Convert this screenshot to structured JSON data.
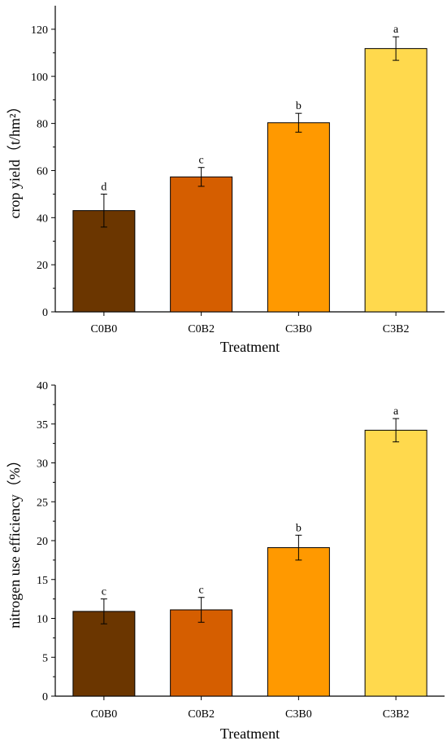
{
  "chart_data": [
    {
      "type": "bar",
      "title": "",
      "xlabel": "Treatment",
      "ylabel": "crop yield（t/hm²）",
      "ylim": [
        0,
        130
      ],
      "yticks": [
        0,
        20,
        40,
        60,
        80,
        100,
        120
      ],
      "categories": [
        "C0B0",
        "C0B2",
        "C3B0",
        "C3B2"
      ],
      "values": [
        43,
        57.3,
        80.3,
        111.8
      ],
      "errors": [
        7,
        4,
        4,
        5
      ],
      "significance": [
        "d",
        "c",
        "b",
        "a"
      ],
      "colors": [
        "#6b3600",
        "#d55e00",
        "#ff9900",
        "#ffd94d"
      ],
      "grid": false
    },
    {
      "type": "bar",
      "title": "",
      "xlabel": "Treatment",
      "ylabel": "nitrogen use efficiency（%）",
      "ylim": [
        0,
        40
      ],
      "yticks": [
        0,
        5,
        10,
        15,
        20,
        25,
        30,
        35,
        40
      ],
      "categories": [
        "C0B0",
        "C0B2",
        "C3B0",
        "C3B2"
      ],
      "values": [
        10.9,
        11.1,
        19.1,
        34.2
      ],
      "errors": [
        1.6,
        1.6,
        1.6,
        1.5
      ],
      "significance": [
        "c",
        "c",
        "b",
        "a"
      ],
      "colors": [
        "#6b3600",
        "#d55e00",
        "#ff9900",
        "#ffd94d"
      ],
      "grid": false
    }
  ]
}
